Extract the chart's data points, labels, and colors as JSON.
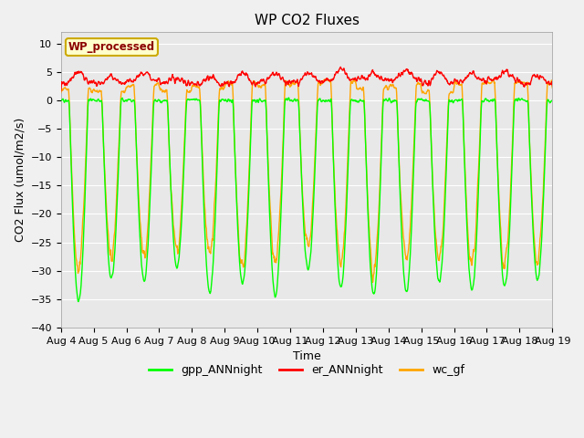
{
  "title": "WP CO2 Fluxes",
  "xlabel": "Time",
  "ylabel": "CO2 Flux (umol/m2/s)",
  "ylim": [
    -40,
    12
  ],
  "yticks": [
    -40,
    -35,
    -30,
    -25,
    -20,
    -15,
    -10,
    -5,
    0,
    5,
    10
  ],
  "n_days": 15,
  "xtick_labels": [
    "Aug 4",
    "Aug 5",
    "Aug 6",
    "Aug 7",
    "Aug 8",
    "Aug 9",
    "Aug 10",
    "Aug 11",
    "Aug 12",
    "Aug 13",
    "Aug 14",
    "Aug 15",
    "Aug 16",
    "Aug 17",
    "Aug 18",
    "Aug 19"
  ],
  "colors": {
    "gpp": "#00FF00",
    "er": "#FF0000",
    "wc": "#FFA500",
    "plot_bg": "#E8E8E8",
    "fig_bg": "#F0F0F0",
    "grid": "#FFFFFF",
    "annotation_bg": "#FFFFCC",
    "annotation_text": "#8B0000",
    "annotation_border": "#CCAA00"
  },
  "annotation_text": "WP_processed",
  "legend_labels": [
    "gpp_ANNnight",
    "er_ANNnight",
    "wc_gf"
  ],
  "n_points_per_day": 96,
  "title_fontsize": 11,
  "axis_label_fontsize": 9,
  "tick_fontsize": 8,
  "legend_fontsize": 9,
  "line_width": 1.0
}
